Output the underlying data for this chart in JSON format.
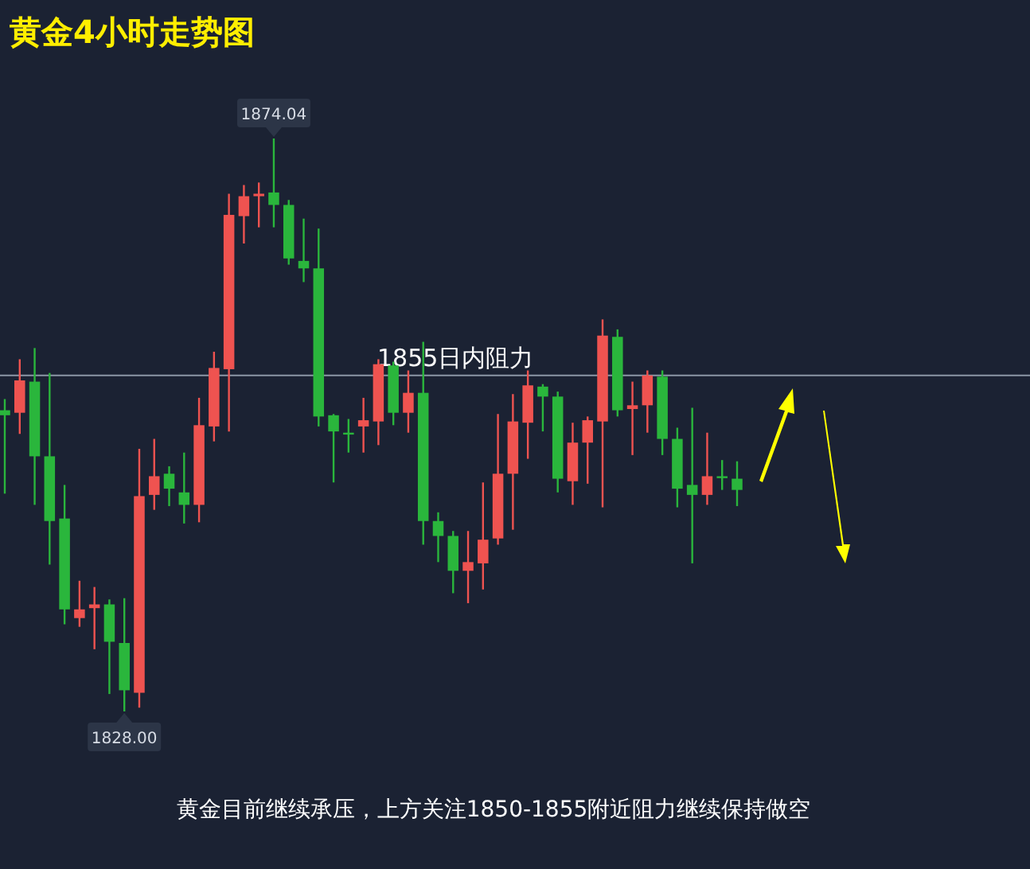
{
  "chart_data": {
    "type": "candlestick",
    "title": "黄金4小时走势图",
    "categories": [
      null,
      null,
      null,
      null,
      null,
      null,
      null,
      null,
      null,
      null,
      null,
      null,
      null,
      null,
      null,
      null,
      null,
      null,
      null,
      null,
      null,
      null,
      null,
      null,
      null,
      null,
      null,
      null,
      null,
      null,
      null,
      null,
      null,
      null,
      null,
      null,
      null,
      null,
      null,
      null,
      null,
      null,
      null,
      null,
      null,
      null,
      null,
      null,
      null,
      null
    ],
    "ohlc": [
      [
        1852.2,
        1853.1,
        1845.5,
        1851.8
      ],
      [
        1852.0,
        1856.3,
        1850.3,
        1854.6
      ],
      [
        1854.5,
        1857.2,
        1844.6,
        1848.5
      ],
      [
        1848.5,
        1855.2,
        1839.8,
        1843.3
      ],
      [
        1843.5,
        1846.2,
        1835.0,
        1836.2
      ],
      [
        1835.5,
        1838.5,
        1834.8,
        1836.2
      ],
      [
        1836.3,
        1838.0,
        1833.0,
        1836.6
      ],
      [
        1836.6,
        1837.0,
        1829.4,
        1833.6
      ],
      [
        1833.5,
        1837.1,
        1828.0,
        1829.7
      ],
      [
        1829.5,
        1849.1,
        1828.3,
        1845.3
      ],
      [
        1845.4,
        1849.9,
        1844.2,
        1846.9
      ],
      [
        1847.1,
        1847.7,
        1844.5,
        1845.9
      ],
      [
        1845.6,
        1848.8,
        1843.1,
        1844.6
      ],
      [
        1844.6,
        1853.2,
        1843.2,
        1851.0
      ],
      [
        1850.9,
        1856.9,
        1849.7,
        1855.6
      ],
      [
        1855.5,
        1869.6,
        1850.5,
        1867.9
      ],
      [
        1867.8,
        1870.3,
        1865.6,
        1869.4
      ],
      [
        1869.4,
        1870.5,
        1866.9,
        1869.6
      ],
      [
        1869.7,
        1874.04,
        1866.9,
        1868.7
      ],
      [
        1868.7,
        1869.1,
        1863.9,
        1864.4
      ],
      [
        1864.2,
        1867.6,
        1862.5,
        1863.6
      ],
      [
        1863.6,
        1866.8,
        1850.9,
        1851.7
      ],
      [
        1851.8,
        1851.9,
        1846.4,
        1850.5
      ],
      [
        1850.4,
        1851.5,
        1848.8,
        1850.3
      ],
      [
        1850.9,
        1853.2,
        1848.8,
        1851.4
      ],
      [
        1851.3,
        1856.3,
        1849.4,
        1855.9
      ],
      [
        1855.8,
        1856.1,
        1851.0,
        1852.0
      ],
      [
        1852.0,
        1855.4,
        1850.4,
        1853.6
      ],
      [
        1853.6,
        1857.7,
        1841.4,
        1843.3
      ],
      [
        1843.3,
        1844.0,
        1840.0,
        1842.1
      ],
      [
        1842.1,
        1842.5,
        1837.5,
        1839.3
      ],
      [
        1839.3,
        1842.5,
        1836.7,
        1840.0
      ],
      [
        1839.9,
        1846.4,
        1837.8,
        1841.8
      ],
      [
        1841.9,
        1851.9,
        1841.4,
        1847.1
      ],
      [
        1847.1,
        1853.5,
        1842.6,
        1851.3
      ],
      [
        1851.2,
        1855.4,
        1848.3,
        1854.2
      ],
      [
        1854.1,
        1854.3,
        1850.5,
        1853.3
      ],
      [
        1853.3,
        1853.7,
        1845.6,
        1846.7
      ],
      [
        1846.5,
        1851.2,
        1844.6,
        1849.6
      ],
      [
        1849.6,
        1851.7,
        1846.3,
        1851.4
      ],
      [
        1851.3,
        1859.5,
        1844.4,
        1858.2
      ],
      [
        1858.1,
        1858.7,
        1851.7,
        1852.2
      ],
      [
        1852.3,
        1854.5,
        1848.6,
        1852.6
      ],
      [
        1852.6,
        1855.4,
        1850.4,
        1855.0
      ],
      [
        1854.9,
        1855.4,
        1848.6,
        1849.9
      ],
      [
        1849.9,
        1850.8,
        1844.4,
        1845.9
      ],
      [
        1846.2,
        1852.4,
        1839.9,
        1845.4
      ],
      [
        1845.4,
        1850.4,
        1844.6,
        1846.9
      ],
      [
        1846.9,
        1848.2,
        1845.8,
        1846.8
      ],
      [
        1846.7,
        1848.1,
        1844.5,
        1845.8
      ]
    ],
    "colors": [
      "#2ab63c",
      "#ef5350",
      "#2ab63c",
      "#2ab63c",
      "#2ab63c",
      "#ef5350",
      "#ef5350",
      "#2ab63c",
      "#2ab63c",
      "#ef5350",
      "#ef5350",
      "#2ab63c",
      "#2ab63c",
      "#ef5350",
      "#ef5350",
      "#ef5350",
      "#ef5350",
      "#ef5350",
      "#2ab63c",
      "#2ab63c",
      "#2ab63c",
      "#2ab63c",
      "#2ab63c",
      "#2ab63c",
      "#ef5350",
      "#ef5350",
      "#2ab63c",
      "#ef5350",
      "#2ab63c",
      "#2ab63c",
      "#2ab63c",
      "#ef5350",
      "#ef5350",
      "#ef5350",
      "#ef5350",
      "#ef5350",
      "#2ab63c",
      "#2ab63c",
      "#ef5350",
      "#ef5350",
      "#ef5350",
      "#2ab63c",
      "#ef5350",
      "#ef5350",
      "#2ab63c",
      "#2ab63c",
      "#2ab63c",
      "#ef5350",
      "#2ab63c",
      "#2ab63c"
    ],
    "ref_lines": [
      {
        "axis": "y",
        "value": 1855,
        "label": "1855日内阻力",
        "color": "#8c97a6"
      }
    ],
    "annotations": [
      {
        "text": "1874.04",
        "y": 1874.04
      },
      {
        "text": "1828.00",
        "y": 1828.0
      },
      "黄金目前继续承压，上方关注1850-1855附近阻力继续保持做空"
    ],
    "tick_labels": false
  }
}
